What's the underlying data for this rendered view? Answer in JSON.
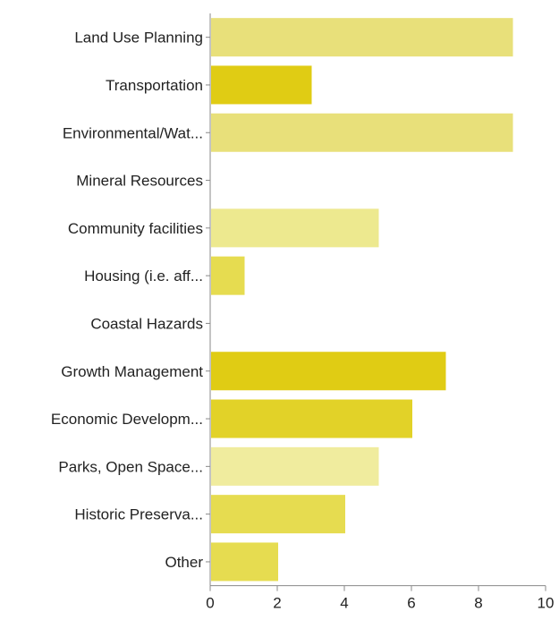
{
  "chart_data": {
    "type": "bar",
    "orientation": "horizontal",
    "categories": [
      "Land Use Planning",
      "Transportation",
      "Environmental/Wat...",
      "Mineral Resources",
      "Community facilities",
      "Housing (i.e. aff...",
      "Coastal Hazards",
      "Growth Management",
      "Economic Developm...",
      "Parks, Open Space...",
      "Historic Preserva...",
      "Other"
    ],
    "values": [
      9,
      3,
      9,
      0,
      5,
      1,
      0,
      7,
      6,
      5,
      4,
      2
    ],
    "bar_colors": [
      "#e8e07a",
      "#e0cc14",
      "#e8e07a",
      "#e6dc50",
      "#ede98f",
      "#e6dc50",
      "#e6dc50",
      "#e0cc14",
      "#e2d228",
      "#f0ec9e",
      "#e6dc50",
      "#e6dc50"
    ],
    "xlim": [
      0,
      10
    ],
    "x_ticks": [
      0,
      2,
      4,
      6,
      8,
      10
    ],
    "title": "",
    "xlabel": "",
    "ylabel": "",
    "grid": false,
    "legend": "none"
  }
}
